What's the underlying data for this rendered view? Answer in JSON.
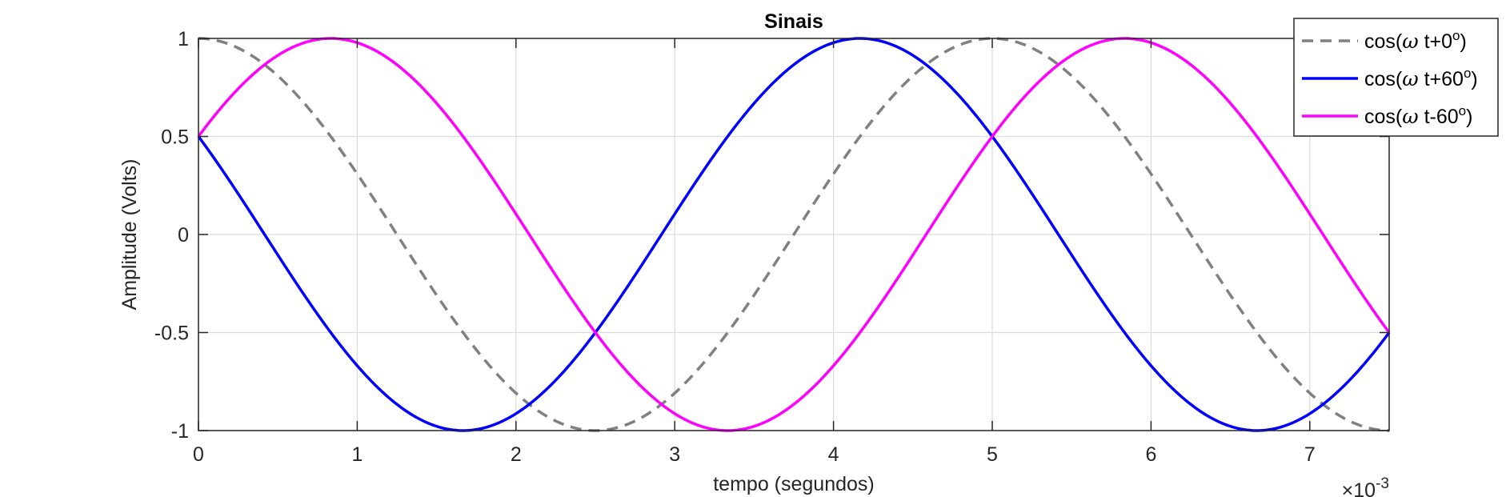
{
  "chart_data": {
    "type": "line",
    "title": "Sinais",
    "xlabel": "tempo (segundos)",
    "ylabel": "Amplitude (Volts)",
    "x_exponent_label": {
      "base": "×10",
      "exp": "-3"
    },
    "xlim": [
      0,
      0.0075
    ],
    "ylim": [
      -1,
      1
    ],
    "x_ticks": [
      0,
      0.001,
      0.002,
      0.003,
      0.004,
      0.005,
      0.006,
      0.007
    ],
    "x_tick_labels": [
      "0",
      "1",
      "2",
      "3",
      "4",
      "5",
      "6",
      "7"
    ],
    "y_ticks": [
      1,
      0.5,
      0,
      -0.5,
      -1
    ],
    "y_tick_labels": [
      "1",
      "0.5",
      "0",
      "-0.5",
      "-1"
    ],
    "grid": true,
    "legend_position": "top-right",
    "frequency_hz": 200,
    "series": [
      {
        "name": "cos(ω t+0º)",
        "label_parts": {
          "pre": "cos(",
          "omega": "ω",
          "mid": " t+0",
          "sup": "o",
          "post": ")"
        },
        "phase_deg": 0,
        "color": "#808080",
        "style": "dashed"
      },
      {
        "name": "cos(ω t+60º)",
        "label_parts": {
          "pre": "cos(",
          "omega": "ω",
          "mid": " t+60",
          "sup": "o",
          "post": ")"
        },
        "phase_deg": 60,
        "color": "#0000ff",
        "style": "solid"
      },
      {
        "name": "cos(ω t-60º)",
        "label_parts": {
          "pre": "cos(",
          "omega": "ω",
          "mid": " t-60",
          "sup": "o",
          "post": ")"
        },
        "phase_deg": -60,
        "color": "#ff00ff",
        "style": "solid"
      }
    ]
  }
}
